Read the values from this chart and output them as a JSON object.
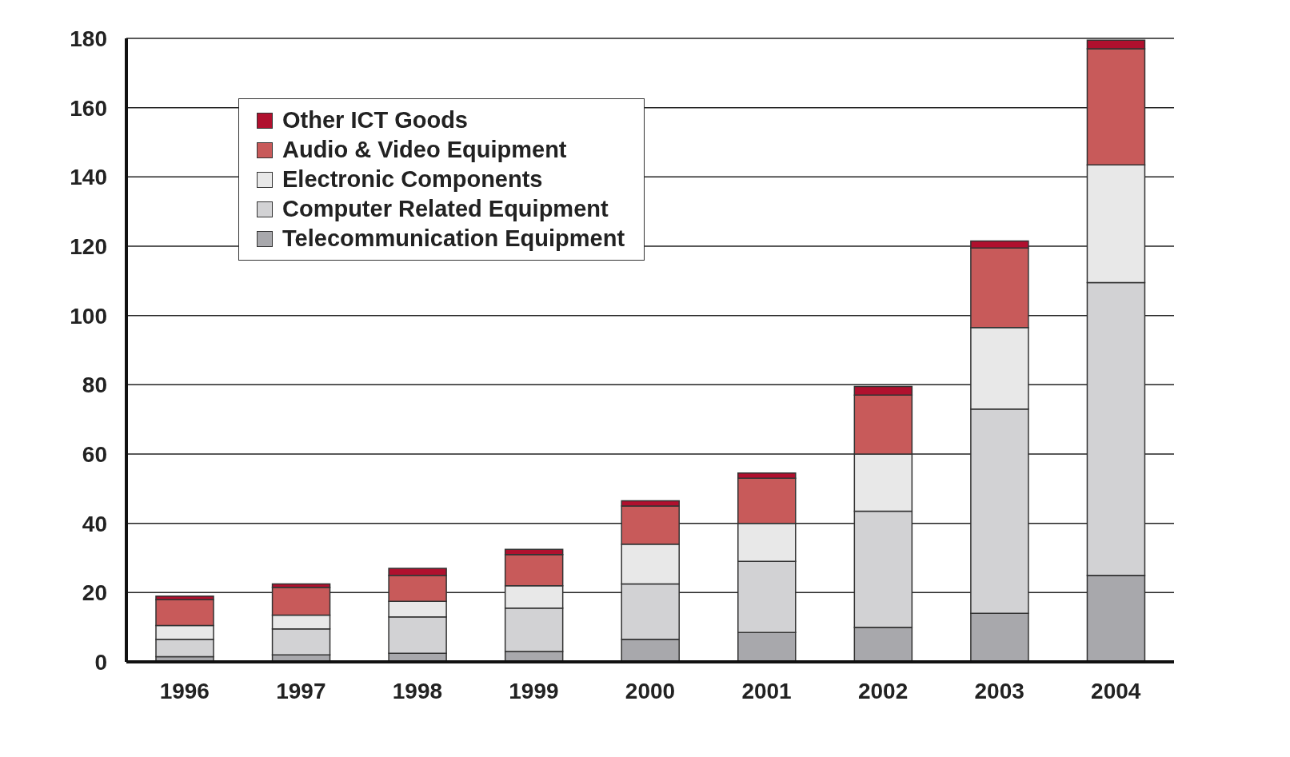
{
  "chart_data": {
    "type": "bar",
    "stacked": true,
    "categories": [
      "1996",
      "1997",
      "1998",
      "1999",
      "2000",
      "2001",
      "2002",
      "2003",
      "2004"
    ],
    "series": [
      {
        "name": "Telecommunication Equipment",
        "color": "#a8a8ac",
        "values": [
          1.5,
          2,
          2.5,
          3,
          6.5,
          8.5,
          10,
          14,
          25
        ]
      },
      {
        "name": "Computer  Related Equipment",
        "color": "#d2d2d4",
        "values": [
          5,
          7.5,
          10.5,
          12.5,
          16,
          20.5,
          33.5,
          59,
          84.5
        ]
      },
      {
        "name": "Electronic Components",
        "color": "#e8e8e8",
        "values": [
          4,
          4,
          4.5,
          6.5,
          11.5,
          11,
          16.5,
          23.5,
          34
        ]
      },
      {
        "name": "Audio & Video Equipment",
        "color": "#c85a5a",
        "values": [
          7.5,
          8,
          7.5,
          9,
          11,
          13,
          17,
          23,
          33.5
        ]
      },
      {
        "name": "Other ICT Goods",
        "color": "#b0102e",
        "values": [
          1,
          1,
          2,
          1.5,
          1.5,
          1.5,
          2.5,
          2,
          2.5
        ]
      }
    ],
    "ylim": [
      0,
      180
    ],
    "yticks": [
      0,
      20,
      40,
      60,
      80,
      100,
      120,
      140,
      160,
      180
    ],
    "grid": "y",
    "legend": "top left"
  }
}
